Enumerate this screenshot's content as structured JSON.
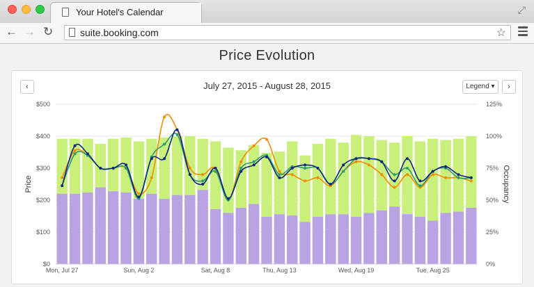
{
  "browser": {
    "tab_title": "Your Hotel's Calendar",
    "url": "suite.booking.com",
    "nav": {
      "back": "←",
      "forward": "→",
      "reload": "↻"
    },
    "icons": {
      "star": "☆",
      "fullscreen": "⤢"
    }
  },
  "page": {
    "title": "Price Evolution",
    "date_range": "July 27, 2015 - August 28, 2015",
    "legend_label": "Legend ▾",
    "prev_label": "‹",
    "next_label": "›"
  },
  "chart_data": {
    "type": "bar+line",
    "title": "Price Evolution",
    "subtitle": "July 27, 2015 - August 28, 2015",
    "ylabel": "Price",
    "y2label": "Occupancy",
    "ylim": [
      0,
      500
    ],
    "y2lim": [
      0,
      125
    ],
    "yticks": [
      "$0",
      "$100",
      "$200",
      "$300",
      "$400",
      "$500"
    ],
    "y2ticks": [
      "0%",
      "25%",
      "50%",
      "75%",
      "100%",
      "125%"
    ],
    "xtick_labels": [
      "Mon, Jul 27",
      "Sun, Aug 2",
      "Sat, Aug 8",
      "Thu, Aug 13",
      "Wed, Aug 19",
      "Tue, Aug 25"
    ],
    "xtick_index": [
      0,
      6,
      12,
      17,
      23,
      29
    ],
    "grid": true,
    "colors": {
      "occupancy_total": "#c8f07a",
      "occupancy_own": "#b8a3e3",
      "orange": "#f08c00",
      "green": "#2e9c6e",
      "navy": "#0f2580"
    },
    "occupancy_total": [
      98,
      98,
      98,
      94,
      98,
      99,
      96,
      98,
      99,
      100,
      100,
      98,
      96,
      91,
      89,
      93,
      87,
      88,
      96,
      85,
      94,
      98,
      95,
      101,
      100,
      97,
      95,
      100,
      96,
      98,
      97,
      98,
      100
    ],
    "occupancy_own": [
      55,
      55,
      56,
      60,
      57,
      56,
      51,
      55,
      51,
      54,
      54,
      58,
      43,
      40,
      44,
      47,
      37,
      39,
      38,
      33,
      37,
      39,
      39,
      37,
      40,
      42,
      45,
      39,
      37,
      34,
      40,
      41,
      44
    ],
    "series": [
      {
        "values": [
          270,
          355,
          340,
          300,
          300,
          300,
          220,
          270,
          460,
          420,
          300,
          280,
          300,
          200,
          320,
          370,
          390,
          290,
          280,
          260,
          270,
          245,
          290,
          320,
          310,
          280,
          240,
          280,
          240,
          280,
          270,
          270,
          260
        ]
      },
      {
        "values": [
          245,
          345,
          340,
          300,
          300,
          300,
          205,
          335,
          375,
          405,
          280,
          260,
          290,
          200,
          300,
          320,
          340,
          280,
          305,
          300,
          300,
          250,
          290,
          330,
          330,
          320,
          280,
          300,
          245,
          290,
          300,
          270,
          270
        ]
      },
      {
        "values": [
          245,
          370,
          345,
          300,
          300,
          310,
          210,
          330,
          330,
          420,
          280,
          250,
          300,
          205,
          290,
          310,
          335,
          270,
          300,
          310,
          300,
          250,
          310,
          330,
          330,
          320,
          260,
          330,
          260,
          290,
          305,
          280,
          270
        ]
      }
    ]
  }
}
